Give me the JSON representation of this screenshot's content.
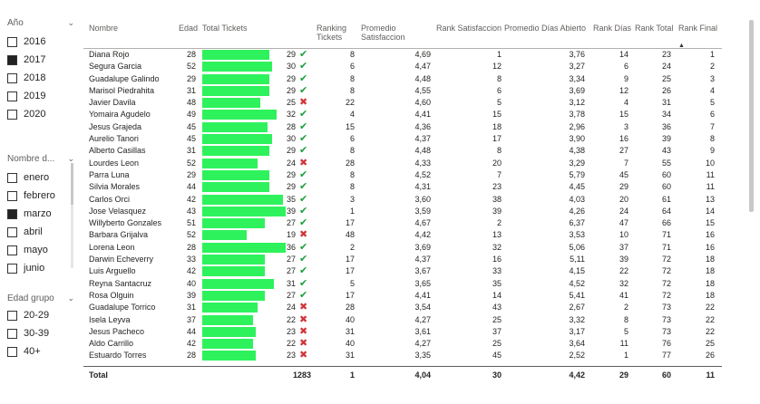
{
  "slicers": {
    "year": {
      "title": "Año",
      "options": [
        {
          "label": "2016",
          "checked": false
        },
        {
          "label": "2017",
          "checked": true
        },
        {
          "label": "2018",
          "checked": false
        },
        {
          "label": "2019",
          "checked": false
        },
        {
          "label": "2020",
          "checked": false
        }
      ]
    },
    "month": {
      "title": "Nombre d...",
      "options": [
        {
          "label": "enero",
          "checked": false
        },
        {
          "label": "febrero",
          "checked": false
        },
        {
          "label": "marzo",
          "checked": true
        },
        {
          "label": "abril",
          "checked": false
        },
        {
          "label": "mayo",
          "checked": false
        },
        {
          "label": "junio",
          "checked": false
        }
      ]
    },
    "age_group": {
      "title": "Edad grupo",
      "options": [
        {
          "label": "20-29",
          "checked": false
        },
        {
          "label": "30-39",
          "checked": false
        },
        {
          "label": "40+",
          "checked": false
        }
      ]
    }
  },
  "table": {
    "headers": {
      "nombre": "Nombre",
      "edad": "Edad",
      "total_tickets": "Total Tickets",
      "ranking_tickets_1": "Ranking",
      "ranking_tickets_2": "Tickets",
      "promedio_1": "Promedio",
      "promedio_2": "Satisfaccion",
      "rank_satisfaccion": "Rank Satisfaccion",
      "promedio_dias": "Promedio Días Abierto",
      "rank_dias": "Rank Días",
      "rank_total": "Rank Total",
      "rank_final": "Rank Final"
    },
    "bar_max": 36,
    "rows": [
      {
        "nombre": "Diana Rojo",
        "edad": "28",
        "tickets": "29",
        "status": "ok",
        "rank_tickets": "8",
        "prom_sat": "4,69",
        "rank_sat": "1",
        "prom_dias": "3,76",
        "rank_dias": "14",
        "rank_total": "23",
        "rank_final": "1"
      },
      {
        "nombre": "Segura Garcia",
        "edad": "52",
        "tickets": "30",
        "status": "ok",
        "rank_tickets": "6",
        "prom_sat": "4,47",
        "rank_sat": "12",
        "prom_dias": "3,27",
        "rank_dias": "6",
        "rank_total": "24",
        "rank_final": "2"
      },
      {
        "nombre": "Guadalupe Galindo",
        "edad": "29",
        "tickets": "29",
        "status": "ok",
        "rank_tickets": "8",
        "prom_sat": "4,48",
        "rank_sat": "8",
        "prom_dias": "3,34",
        "rank_dias": "9",
        "rank_total": "25",
        "rank_final": "3"
      },
      {
        "nombre": "Marisol Piedrahita",
        "edad": "31",
        "tickets": "29",
        "status": "ok",
        "rank_tickets": "8",
        "prom_sat": "4,55",
        "rank_sat": "6",
        "prom_dias": "3,69",
        "rank_dias": "12",
        "rank_total": "26",
        "rank_final": "4"
      },
      {
        "nombre": "Javier Davila",
        "edad": "48",
        "tickets": "25",
        "status": "bad",
        "rank_tickets": "22",
        "prom_sat": "4,60",
        "rank_sat": "5",
        "prom_dias": "3,12",
        "rank_dias": "4",
        "rank_total": "31",
        "rank_final": "5"
      },
      {
        "nombre": "Yomaira Agudelo",
        "edad": "49",
        "tickets": "32",
        "status": "ok",
        "rank_tickets": "4",
        "prom_sat": "4,41",
        "rank_sat": "15",
        "prom_dias": "3,78",
        "rank_dias": "15",
        "rank_total": "34",
        "rank_final": "6"
      },
      {
        "nombre": "Jesus Grajeda",
        "edad": "45",
        "tickets": "28",
        "status": "ok",
        "rank_tickets": "15",
        "prom_sat": "4,36",
        "rank_sat": "18",
        "prom_dias": "2,96",
        "rank_dias": "3",
        "rank_total": "36",
        "rank_final": "7"
      },
      {
        "nombre": "Aurelio Tanori",
        "edad": "45",
        "tickets": "30",
        "status": "ok",
        "rank_tickets": "6",
        "prom_sat": "4,37",
        "rank_sat": "17",
        "prom_dias": "3,90",
        "rank_dias": "16",
        "rank_total": "39",
        "rank_final": "8"
      },
      {
        "nombre": "Alberto Casillas",
        "edad": "31",
        "tickets": "29",
        "status": "ok",
        "rank_tickets": "8",
        "prom_sat": "4,48",
        "rank_sat": "8",
        "prom_dias": "4,38",
        "rank_dias": "27",
        "rank_total": "43",
        "rank_final": "9"
      },
      {
        "nombre": "Lourdes Leon",
        "edad": "52",
        "tickets": "24",
        "status": "bad",
        "rank_tickets": "28",
        "prom_sat": "4,33",
        "rank_sat": "20",
        "prom_dias": "3,29",
        "rank_dias": "7",
        "rank_total": "55",
        "rank_final": "10"
      },
      {
        "nombre": "Parra Luna",
        "edad": "29",
        "tickets": "29",
        "status": "ok",
        "rank_tickets": "8",
        "prom_sat": "4,52",
        "rank_sat": "7",
        "prom_dias": "5,79",
        "rank_dias": "45",
        "rank_total": "60",
        "rank_final": "11"
      },
      {
        "nombre": "Silvia Morales",
        "edad": "44",
        "tickets": "29",
        "status": "ok",
        "rank_tickets": "8",
        "prom_sat": "4,31",
        "rank_sat": "23",
        "prom_dias": "4,45",
        "rank_dias": "29",
        "rank_total": "60",
        "rank_final": "11"
      },
      {
        "nombre": "Carlos Orci",
        "edad": "42",
        "tickets": "35",
        "status": "ok",
        "rank_tickets": "3",
        "prom_sat": "3,60",
        "rank_sat": "38",
        "prom_dias": "4,03",
        "rank_dias": "20",
        "rank_total": "61",
        "rank_final": "13"
      },
      {
        "nombre": "Jose Velasquez",
        "edad": "43",
        "tickets": "39",
        "status": "ok",
        "rank_tickets": "1",
        "prom_sat": "3,59",
        "rank_sat": "39",
        "prom_dias": "4,26",
        "rank_dias": "24",
        "rank_total": "64",
        "rank_final": "14"
      },
      {
        "nombre": "Willyberto Gonzales",
        "edad": "51",
        "tickets": "27",
        "status": "ok",
        "rank_tickets": "17",
        "prom_sat": "4,67",
        "rank_sat": "2",
        "prom_dias": "6,37",
        "rank_dias": "47",
        "rank_total": "66",
        "rank_final": "15"
      },
      {
        "nombre": "Barbara Grijalva",
        "edad": "52",
        "tickets": "19",
        "status": "bad",
        "rank_tickets": "48",
        "prom_sat": "4,42",
        "rank_sat": "13",
        "prom_dias": "3,53",
        "rank_dias": "10",
        "rank_total": "71",
        "rank_final": "16"
      },
      {
        "nombre": "Lorena Leon",
        "edad": "28",
        "tickets": "36",
        "status": "ok",
        "rank_tickets": "2",
        "prom_sat": "3,69",
        "rank_sat": "32",
        "prom_dias": "5,06",
        "rank_dias": "37",
        "rank_total": "71",
        "rank_final": "16"
      },
      {
        "nombre": "Darwin Echeverry",
        "edad": "33",
        "tickets": "27",
        "status": "ok",
        "rank_tickets": "17",
        "prom_sat": "4,37",
        "rank_sat": "16",
        "prom_dias": "5,11",
        "rank_dias": "39",
        "rank_total": "72",
        "rank_final": "18"
      },
      {
        "nombre": "Luis Arguello",
        "edad": "42",
        "tickets": "27",
        "status": "ok",
        "rank_tickets": "17",
        "prom_sat": "3,67",
        "rank_sat": "33",
        "prom_dias": "4,15",
        "rank_dias": "22",
        "rank_total": "72",
        "rank_final": "18"
      },
      {
        "nombre": "Reyna Santacruz",
        "edad": "40",
        "tickets": "31",
        "status": "ok",
        "rank_tickets": "5",
        "prom_sat": "3,65",
        "rank_sat": "35",
        "prom_dias": "4,52",
        "rank_dias": "32",
        "rank_total": "72",
        "rank_final": "18"
      },
      {
        "nombre": "Rosa Olguin",
        "edad": "39",
        "tickets": "27",
        "status": "ok",
        "rank_tickets": "17",
        "prom_sat": "4,41",
        "rank_sat": "14",
        "prom_dias": "5,41",
        "rank_dias": "41",
        "rank_total": "72",
        "rank_final": "18"
      },
      {
        "nombre": "Guadalupe Torrico",
        "edad": "31",
        "tickets": "24",
        "status": "bad",
        "rank_tickets": "28",
        "prom_sat": "3,54",
        "rank_sat": "43",
        "prom_dias": "2,67",
        "rank_dias": "2",
        "rank_total": "73",
        "rank_final": "22"
      },
      {
        "nombre": "Isela Leyva",
        "edad": "37",
        "tickets": "22",
        "status": "bad",
        "rank_tickets": "40",
        "prom_sat": "4,27",
        "rank_sat": "25",
        "prom_dias": "3,32",
        "rank_dias": "8",
        "rank_total": "73",
        "rank_final": "22"
      },
      {
        "nombre": "Jesus Pacheco",
        "edad": "44",
        "tickets": "23",
        "status": "bad",
        "rank_tickets": "31",
        "prom_sat": "3,61",
        "rank_sat": "37",
        "prom_dias": "3,17",
        "rank_dias": "5",
        "rank_total": "73",
        "rank_final": "22"
      },
      {
        "nombre": "Aldo Carrillo",
        "edad": "42",
        "tickets": "22",
        "status": "bad",
        "rank_tickets": "40",
        "prom_sat": "4,27",
        "rank_sat": "25",
        "prom_dias": "3,64",
        "rank_dias": "11",
        "rank_total": "76",
        "rank_final": "25"
      },
      {
        "nombre": "Estuardo Torres",
        "edad": "28",
        "tickets": "23",
        "status": "bad",
        "rank_tickets": "31",
        "prom_sat": "3,35",
        "rank_sat": "45",
        "prom_dias": "2,52",
        "rank_dias": "1",
        "rank_total": "77",
        "rank_final": "26"
      }
    ],
    "total": {
      "label": "Total",
      "tickets": "1283",
      "rank_tickets": "1",
      "prom_sat": "4,04",
      "rank_sat": "30",
      "prom_dias": "4,42",
      "rank_dias": "29",
      "rank_total": "60",
      "rank_final": "11"
    },
    "icons": {
      "ok": "check-icon",
      "bad": "cross-icon"
    },
    "colors": {
      "bar": "#2ef25c",
      "ok": "#1f9e3a",
      "bad": "#d13438"
    }
  }
}
